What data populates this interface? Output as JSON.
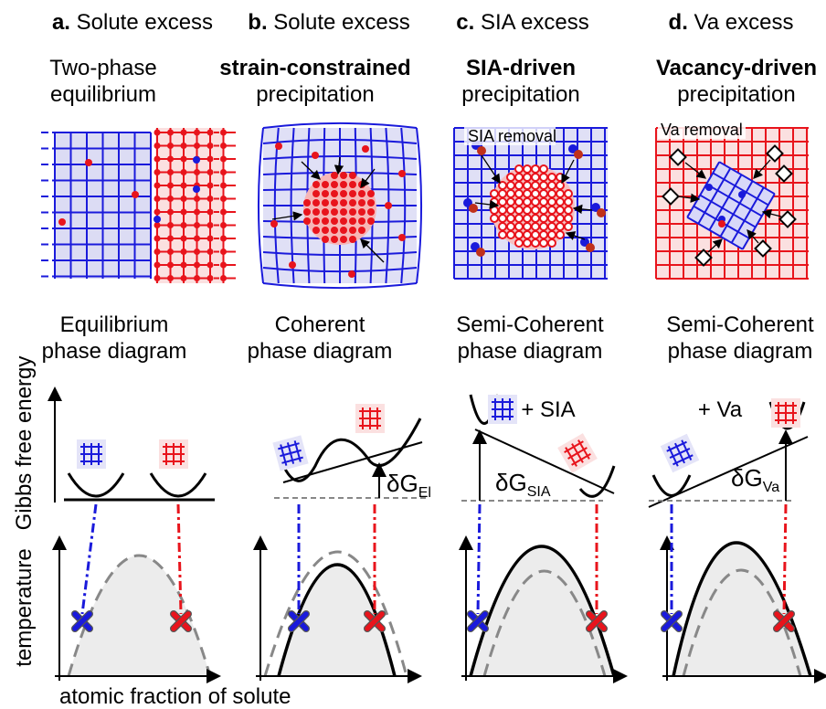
{
  "panels": [
    {
      "letter": "a.",
      "heading": "Solute excess",
      "subtitle": [
        "Two-phase",
        "equilibrium"
      ],
      "diagram_label": [
        "Equilibrium",
        "phase diagram"
      ]
    },
    {
      "letter": "b.",
      "heading": "Solute excess",
      "subtitle": [
        "strain-constrained",
        "precipitation"
      ],
      "diagram_label": [
        "Coherent",
        "phase diagram"
      ]
    },
    {
      "letter": "c.",
      "heading": "SIA excess",
      "subtitle": [
        "SIA-driven",
        "precipitation"
      ],
      "diagram_label": [
        "Semi-Coherent",
        "phase diagram"
      ]
    },
    {
      "letter": "d.",
      "heading": "Va excess",
      "subtitle": [
        "Vacancy-driven",
        "precipitation"
      ],
      "diagram_label": [
        "Semi-Coherent",
        "phase diagram"
      ]
    }
  ],
  "annotations": {
    "sia_removal": "SIA removal",
    "va_removal": "Va removal",
    "plus_sia": "+ SIA",
    "plus_va": "+ Va",
    "delta_g_el": {
      "symbol": "δG",
      "subscript": "El"
    },
    "delta_g_sia": {
      "symbol": "δG",
      "subscript": "SIA"
    },
    "delta_g_va": {
      "symbol": "δG",
      "subscript": "Va"
    }
  },
  "axes": {
    "energy": "Gibbs free energy",
    "temperature": "temperature",
    "composition": "atomic fraction of solute"
  }
}
